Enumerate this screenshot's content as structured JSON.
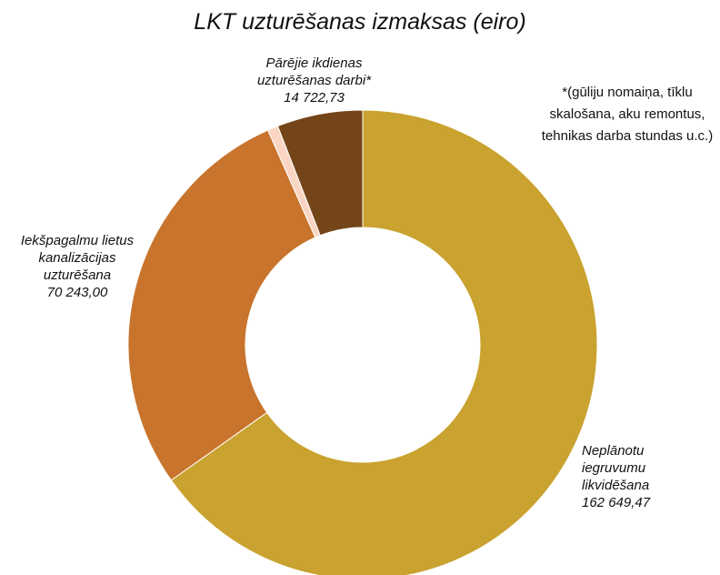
{
  "chart_data": {
    "type": "donut",
    "title": "LKT uzturēšanas izmaksas (eiro)",
    "categories": [
      "Neplānotu iegruvumu likvidēšana",
      "Iekšpagalmu lietus kanalizācijas uzturēšana",
      null,
      "Pārējie ikdienas uzturēšanas darbi*"
    ],
    "values": [
      162649.47,
      70243.0,
      1800,
      14722.73
    ],
    "value_labels": [
      "162 649,47",
      "70 243,00",
      null,
      "14 722,73"
    ],
    "colors": [
      "#c9a22f",
      "#c8742c",
      "#fbd5c4",
      "#744519"
    ],
    "annotation": "*(gūliju nomaiņa, tīklu skalošana, aku remontus, tehnikas darba stundas u.c.)"
  }
}
